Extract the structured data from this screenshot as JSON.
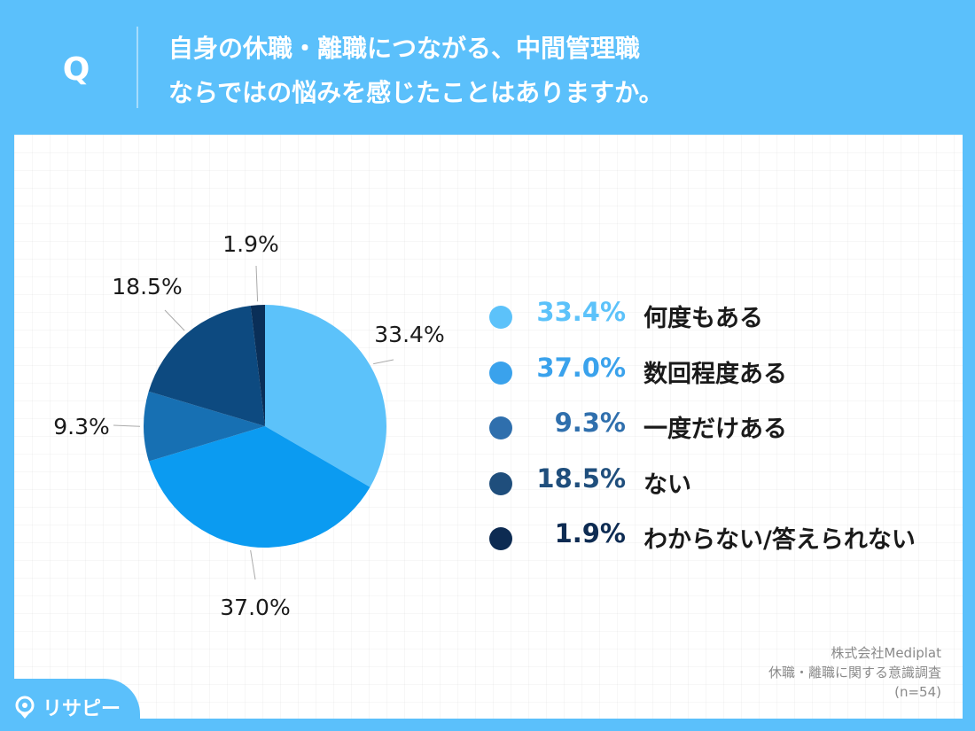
{
  "header": {
    "q_mark": "Q",
    "question_line1": "自身の休職・離職につながる、中間管理職",
    "question_line2": "ならではの悩みを感じたことはありますか。"
  },
  "chart_data": {
    "type": "pie",
    "title": "自身の休職・離職につながる、中間管理職ならではの悩みを感じたことはありますか。",
    "categories": [
      "何度もある",
      "数回程度ある",
      "一度だけある",
      "ない",
      "わからない/答えられない"
    ],
    "values": [
      33.4,
      37.0,
      9.3,
      18.5,
      1.9
    ],
    "value_labels": [
      "33.4%",
      "37.0%",
      "9.3%",
      "18.5%",
      "1.9%"
    ],
    "colors": [
      "#5cc2fa",
      "#0b9bf1",
      "#1770b3",
      "#0d4a80",
      "#0a2f58"
    ],
    "start": "12 o'clock",
    "direction": "clockwise",
    "legend_position": "right"
  },
  "legend": {
    "items": [
      {
        "pct": "33.4%",
        "label": "何度もある",
        "color": "#5cc2fa"
      },
      {
        "pct": "37.0%",
        "label": "数回程度ある",
        "color": "#3aa2ec"
      },
      {
        "pct": "9.3%",
        "label": "一度だけある",
        "color": "#2f6fad"
      },
      {
        "pct": "18.5%",
        "label": "ない",
        "color": "#1f4e7c"
      },
      {
        "pct": "1.9%",
        "label": "わからない/答えられない",
        "color": "#0d2b52"
      }
    ]
  },
  "source": {
    "company": "株式会社Mediplat",
    "survey": "休職・離職に関する意識調査",
    "sample": "(n=54)"
  },
  "logo": {
    "text": "リサピー"
  },
  "colors": {
    "header_bg": "#5bc0fb",
    "panel_bg": "#ffffff"
  }
}
